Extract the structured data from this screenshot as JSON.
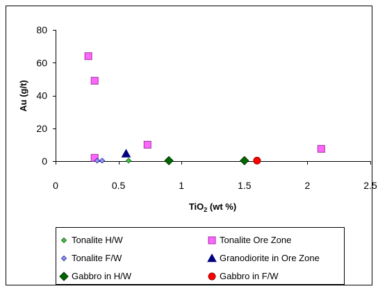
{
  "chart_data": {
    "type": "scatter",
    "xlabel_main": "TiO",
    "xlabel_sub": "2",
    "xlabel_rest": " (wt %)",
    "ylabel": "Au (g/t)",
    "xlim": [
      0,
      2.5
    ],
    "ylim": [
      0,
      80
    ],
    "x_ticks": [
      0,
      0.5,
      1,
      1.5,
      2,
      2.5
    ],
    "y_ticks": [
      0,
      20,
      40,
      60,
      80
    ],
    "x_tick_labels": [
      "0",
      "0.5",
      "1",
      "1.5",
      "2",
      "2.5"
    ],
    "y_tick_labels": [
      "0",
      "20",
      "40",
      "60",
      "80"
    ],
    "grid": false,
    "legend_position": "bottom",
    "series": [
      {
        "name": "Tonalite H/W",
        "marker": "diamond-small",
        "color": "#33cc33",
        "stroke": "#336633",
        "points": [
          [
            0.58,
            0.3
          ]
        ]
      },
      {
        "name": "Tonalite Ore Zone",
        "marker": "square",
        "color": "#ff66ff",
        "stroke": "#993399",
        "points": [
          [
            0.26,
            64
          ],
          [
            0.31,
            49
          ],
          [
            0.31,
            2
          ],
          [
            0.73,
            10
          ],
          [
            2.11,
            7.5
          ]
        ]
      },
      {
        "name": "Tonalite F/W",
        "marker": "diamond-small",
        "color": "#9999ff",
        "stroke": "#333399",
        "points": [
          [
            0.33,
            0.3
          ],
          [
            0.37,
            0.3
          ]
        ]
      },
      {
        "name": "Granodiorite in Ore Zone",
        "marker": "triangle",
        "color": "#000080",
        "stroke": "#000080",
        "points": [
          [
            0.56,
            4.5
          ]
        ]
      },
      {
        "name": "Gabbro in H/W",
        "marker": "diamond",
        "color": "#006600",
        "stroke": "#003300",
        "points": [
          [
            0.9,
            0.3
          ],
          [
            1.5,
            0.3
          ]
        ]
      },
      {
        "name": "Gabbro in F/W",
        "marker": "circle",
        "color": "#ff0000",
        "stroke": "#990000",
        "points": [
          [
            1.6,
            0.3
          ]
        ]
      }
    ]
  }
}
